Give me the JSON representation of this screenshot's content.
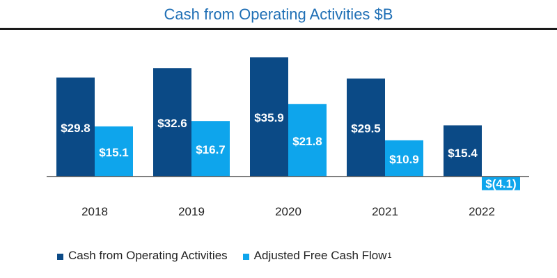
{
  "header": {
    "title": "Cash from Operating Activities $B"
  },
  "colors": {
    "operating": "#0b4a86",
    "fcf": "#0ea5ec",
    "axis": "#555555"
  },
  "chart_data": {
    "type": "bar",
    "title": "Cash from Operating Activities $B",
    "xlabel": "",
    "ylabel": "",
    "ylim": [
      -5,
      40
    ],
    "grid": false,
    "legend_position": "bottom-left",
    "categories": [
      "2018",
      "2019",
      "2020",
      "2021",
      "2022"
    ],
    "series": [
      {
        "name": "Cash from Operating Activities",
        "values": [
          29.8,
          32.6,
          35.9,
          29.5,
          15.4
        ],
        "labels": [
          "$29.8",
          "$32.6",
          "$35.9",
          "$29.5",
          "$15.4"
        ]
      },
      {
        "name": "Adjusted Free Cash Flow",
        "name_superscript": "1",
        "values": [
          15.1,
          16.7,
          21.8,
          10.9,
          -4.1
        ],
        "labels": [
          "$15.1",
          "$16.7",
          "$21.8",
          "$10.9",
          "$(4.1)"
        ]
      }
    ]
  }
}
